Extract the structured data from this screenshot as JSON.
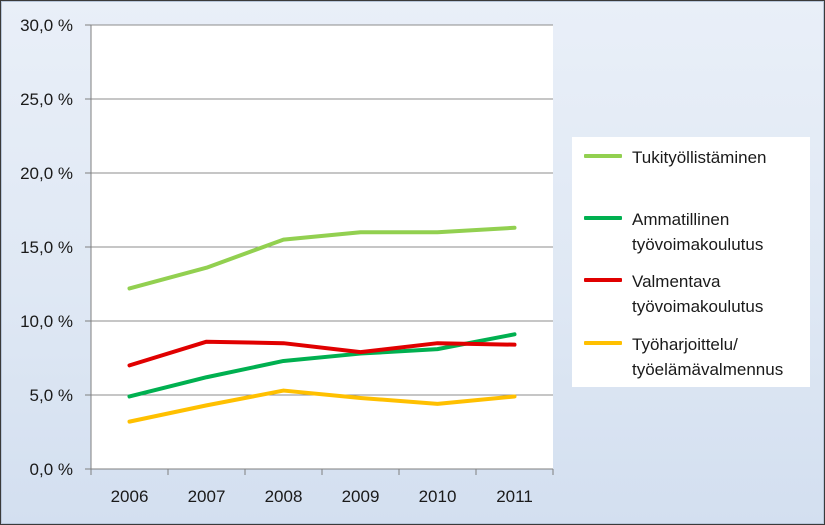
{
  "chart_data": {
    "type": "line",
    "title": "",
    "xlabel": "",
    "ylabel": "",
    "categories": [
      "2006",
      "2007",
      "2008",
      "2009",
      "2010",
      "2011"
    ],
    "ylim": [
      0,
      30
    ],
    "yticks": [
      "0,0 %",
      "5,0 %",
      "10,0 %",
      "15,0 %",
      "20,0 %",
      "25,0 %",
      "30,0 %"
    ],
    "grid": true,
    "legend_position": "right",
    "series": [
      {
        "name": "Tukityöllistäminen",
        "name_lines": [
          "Tukityöllistäminen"
        ],
        "color": "#92d050",
        "values": [
          12.2,
          13.6,
          15.5,
          16.0,
          16.0,
          16.3
        ]
      },
      {
        "name": "Ammatillinen työvoimakoulutus",
        "name_lines": [
          "Ammatillinen",
          "työvoimakoulutus"
        ],
        "color": "#00b050",
        "values": [
          4.9,
          6.2,
          7.3,
          7.8,
          8.1,
          9.1
        ]
      },
      {
        "name": "Valmentava työvoimakoulutus",
        "name_lines": [
          "Valmentava",
          "työvoimakoulutus"
        ],
        "color": "#e00000",
        "values": [
          7.0,
          8.6,
          8.5,
          7.9,
          8.5,
          8.4
        ]
      },
      {
        "name": "Työharjoittelu/ työelämävalmennus",
        "name_lines": [
          "Työharjoittelu/",
          "työelämävalmennus"
        ],
        "color": "#ffc000",
        "values": [
          3.2,
          4.3,
          5.3,
          4.8,
          4.4,
          4.9
        ]
      }
    ]
  }
}
